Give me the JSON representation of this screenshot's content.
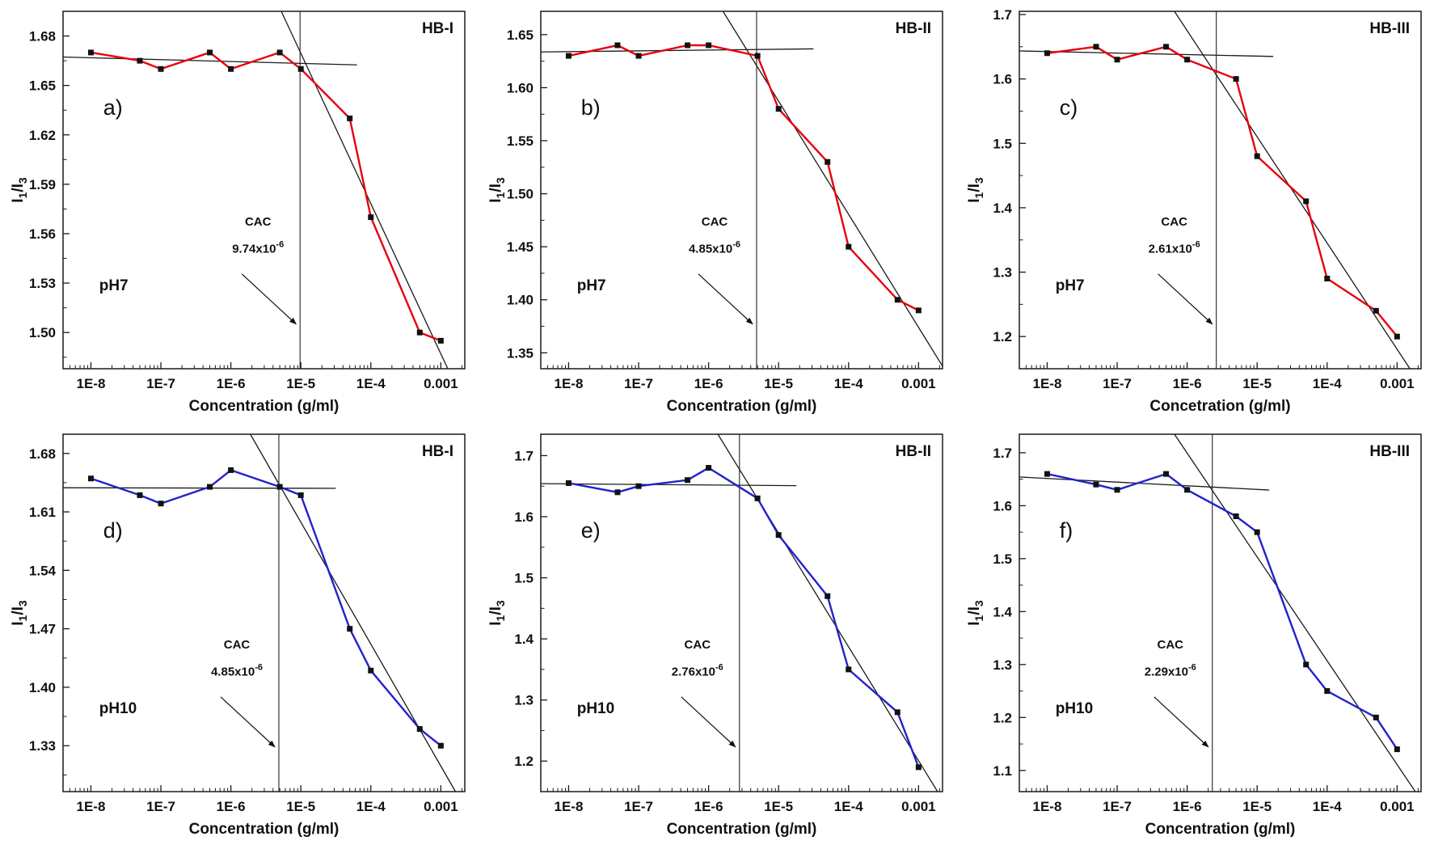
{
  "figure": {
    "background": "#ffffff",
    "rows": 2,
    "cols": 3,
    "marker_color": "#111111",
    "fit_line_color": "#1a1a1a"
  },
  "chart_data": [
    {
      "type": "line",
      "panel_label": "a)",
      "sample_label": "HB-I",
      "ph_label": "pH7",
      "series_color": "#e8000d",
      "xlabel": "Concentration (g/ml)",
      "ylabel": "I1/I3",
      "x": [
        1e-08,
        5e-08,
        1e-07,
        5e-07,
        1e-06,
        5e-06,
        1e-05,
        5e-05,
        0.0001,
        0.0005,
        0.001
      ],
      "y": [
        1.67,
        1.665,
        1.66,
        1.67,
        1.66,
        1.67,
        1.66,
        1.63,
        1.57,
        1.5,
        1.495
      ],
      "xlim": [
        4e-09,
        0.0022
      ],
      "ylim": [
        1.478,
        1.695
      ],
      "xtick_values": [
        1e-08,
        1e-07,
        1e-06,
        1e-05,
        0.0001,
        0.001
      ],
      "xtick_labels": [
        "1E-8",
        "1E-7",
        "1E-6",
        "1E-5",
        "1E-4",
        "0.001"
      ],
      "ytick_values": [
        1.5,
        1.53,
        1.56,
        1.59,
        1.62,
        1.65,
        1.68
      ],
      "ytick_labels": [
        "1.50",
        "1.53",
        "1.56",
        "1.59",
        "1.62",
        "1.65",
        "1.68"
      ],
      "cac": {
        "label": "CAC",
        "value": 9.74e-06,
        "mantissa": "9.74x10",
        "exponent": "-6"
      },
      "plateau_fit_idx": [
        0,
        6
      ],
      "steep_fit_idx": [
        6,
        10
      ]
    },
    {
      "type": "line",
      "panel_label": "b)",
      "sample_label": "HB-II",
      "ph_label": "pH7",
      "series_color": "#e8000d",
      "xlabel": "Concentration (g/ml)",
      "ylabel": "I1/I3",
      "x": [
        1e-08,
        5e-08,
        1e-07,
        5e-07,
        1e-06,
        5e-06,
        1e-05,
        5e-05,
        0.0001,
        0.0005,
        0.001
      ],
      "y": [
        1.63,
        1.64,
        1.63,
        1.64,
        1.64,
        1.63,
        1.58,
        1.53,
        1.45,
        1.4,
        1.39
      ],
      "xlim": [
        4e-09,
        0.0022
      ],
      "ylim": [
        1.335,
        1.672
      ],
      "xtick_values": [
        1e-08,
        1e-07,
        1e-06,
        1e-05,
        0.0001,
        0.001
      ],
      "xtick_labels": [
        "1E-8",
        "1E-7",
        "1E-6",
        "1E-5",
        "1E-4",
        "0.001"
      ],
      "ytick_values": [
        1.35,
        1.4,
        1.45,
        1.5,
        1.55,
        1.6,
        1.65
      ],
      "ytick_labels": [
        "1.35",
        "1.40",
        "1.45",
        "1.50",
        "1.55",
        "1.60",
        "1.65"
      ],
      "cac": {
        "label": "CAC",
        "value": 4.85e-06,
        "mantissa": "4.85x10",
        "exponent": "-6"
      },
      "plateau_fit_idx": [
        0,
        5
      ],
      "steep_fit_idx": [
        5,
        10
      ]
    },
    {
      "type": "line",
      "panel_label": "c)",
      "sample_label": "HB-III",
      "ph_label": "pH7",
      "series_color": "#e8000d",
      "xlabel": "Concetration (g/ml)",
      "ylabel": "I1/I3",
      "x": [
        1e-08,
        5e-08,
        1e-07,
        5e-07,
        1e-06,
        5e-06,
        1e-05,
        5e-05,
        0.0001,
        0.0005,
        0.001
      ],
      "y": [
        1.64,
        1.65,
        1.63,
        1.65,
        1.63,
        1.6,
        1.48,
        1.41,
        1.29,
        1.24,
        1.2
      ],
      "xlim": [
        4e-09,
        0.0022
      ],
      "ylim": [
        1.15,
        1.705
      ],
      "xtick_values": [
        1e-08,
        1e-07,
        1e-06,
        1e-05,
        0.0001,
        0.001
      ],
      "xtick_labels": [
        "1E-8",
        "1E-7",
        "1E-6",
        "1E-5",
        "1E-4",
        "0.001"
      ],
      "ytick_values": [
        1.2,
        1.3,
        1.4,
        1.5,
        1.6,
        1.7
      ],
      "ytick_labels": [
        "1.2",
        "1.3",
        "1.4",
        "1.5",
        "1.6",
        "1.7"
      ],
      "cac": {
        "label": "CAC",
        "value": 2.61e-06,
        "mantissa": "2.61x10",
        "exponent": "-6"
      },
      "plateau_fit_idx": [
        0,
        4
      ],
      "steep_fit_idx": [
        5,
        10
      ]
    },
    {
      "type": "line",
      "panel_label": "d)",
      "sample_label": "HB-I",
      "ph_label": "pH10",
      "series_color": "#2222cc",
      "xlabel": "Concentration (g/ml)",
      "ylabel": "I1/I3",
      "x": [
        1e-08,
        5e-08,
        1e-07,
        5e-07,
        1e-06,
        5e-06,
        1e-05,
        5e-05,
        0.0001,
        0.0005,
        0.001
      ],
      "y": [
        1.65,
        1.63,
        1.62,
        1.64,
        1.66,
        1.64,
        1.63,
        1.47,
        1.42,
        1.35,
        1.33
      ],
      "xlim": [
        4e-09,
        0.0022
      ],
      "ylim": [
        1.275,
        1.703
      ],
      "xtick_values": [
        1e-08,
        1e-07,
        1e-06,
        1e-05,
        0.0001,
        0.001
      ],
      "xtick_labels": [
        "1E-8",
        "1E-7",
        "1E-6",
        "1E-5",
        "1E-4",
        "0.001"
      ],
      "ytick_values": [
        1.33,
        1.4,
        1.47,
        1.54,
        1.61,
        1.68
      ],
      "ytick_labels": [
        "1.33",
        "1.40",
        "1.47",
        "1.54",
        "1.61",
        "1.68"
      ],
      "cac": {
        "label": "CAC",
        "value": 4.85e-06,
        "mantissa": "4.85x10",
        "exponent": "-6"
      },
      "plateau_fit_idx": [
        0,
        6
      ],
      "steep_fit_idx": [
        6,
        10
      ]
    },
    {
      "type": "line",
      "panel_label": "e)",
      "sample_label": "HB-II",
      "ph_label": "pH10",
      "series_color": "#2222cc",
      "xlabel": "Concentration (g/ml)",
      "ylabel": "I1/I3",
      "x": [
        1e-08,
        5e-08,
        1e-07,
        5e-07,
        1e-06,
        5e-06,
        1e-05,
        5e-05,
        0.0001,
        0.0005,
        0.001
      ],
      "y": [
        1.655,
        1.64,
        1.65,
        1.66,
        1.68,
        1.63,
        1.57,
        1.47,
        1.35,
        1.28,
        1.19
      ],
      "xlim": [
        4e-09,
        0.0022
      ],
      "ylim": [
        1.15,
        1.735
      ],
      "xtick_values": [
        1e-08,
        1e-07,
        1e-06,
        1e-05,
        0.0001,
        0.001
      ],
      "xtick_labels": [
        "1E-8",
        "1E-7",
        "1E-6",
        "1E-5",
        "1E-4",
        "0.001"
      ],
      "ytick_values": [
        1.2,
        1.3,
        1.4,
        1.5,
        1.6,
        1.7
      ],
      "ytick_labels": [
        "1.2",
        "1.3",
        "1.4",
        "1.5",
        "1.6",
        "1.7"
      ],
      "cac": {
        "label": "CAC",
        "value": 2.76e-06,
        "mantissa": "2.76x10",
        "exponent": "-6"
      },
      "plateau_fit_idx": [
        0,
        5
      ],
      "steep_fit_idx": [
        5,
        10
      ]
    },
    {
      "type": "line",
      "panel_label": "f)",
      "sample_label": "HB-III",
      "ph_label": "pH10",
      "series_color": "#2222cc",
      "xlabel": "Concentration (g/ml)",
      "ylabel": "I1/I3",
      "x": [
        1e-08,
        5e-08,
        1e-07,
        5e-07,
        1e-06,
        5e-06,
        1e-05,
        5e-05,
        0.0001,
        0.0005,
        0.001
      ],
      "y": [
        1.66,
        1.64,
        1.63,
        1.66,
        1.63,
        1.58,
        1.55,
        1.3,
        1.25,
        1.2,
        1.14
      ],
      "xlim": [
        4e-09,
        0.0022
      ],
      "ylim": [
        1.06,
        1.735
      ],
      "xtick_values": [
        1e-08,
        1e-07,
        1e-06,
        1e-05,
        0.0001,
        0.001
      ],
      "xtick_labels": [
        "1E-8",
        "1E-7",
        "1E-6",
        "1E-5",
        "1E-4",
        "0.001"
      ],
      "ytick_values": [
        1.1,
        1.2,
        1.3,
        1.4,
        1.5,
        1.6,
        1.7
      ],
      "ytick_labels": [
        "1.1",
        "1.2",
        "1.3",
        "1.4",
        "1.5",
        "1.6",
        "1.7"
      ],
      "cac": {
        "label": "CAC",
        "value": 2.29e-06,
        "mantissa": "2.29x10",
        "exponent": "-6"
      },
      "plateau_fit_idx": [
        0,
        4
      ],
      "steep_fit_idx": [
        5,
        10
      ]
    }
  ]
}
